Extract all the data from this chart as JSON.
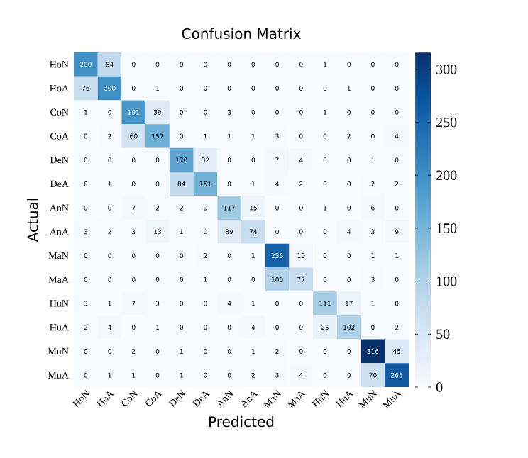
{
  "chart_data": {
    "type": "heatmap",
    "title": "Confusion Matrix",
    "xlabel": "Predicted",
    "ylabel": "Actual",
    "categories": [
      "HoN",
      "HoA",
      "CoN",
      "CoA",
      "DeN",
      "DeA",
      "AnN",
      "AnA",
      "MaN",
      "MaA",
      "HuN",
      "HuA",
      "MuN",
      "MuA"
    ],
    "y_categories": [
      "HoN",
      "HoA",
      "CoN",
      "CoA",
      "DeN",
      "DeA",
      "AnN",
      "AnA",
      "MaN",
      "MaA",
      "HuN",
      "HuA",
      "MuN",
      "MuA"
    ],
    "cells": [
      [
        200,
        84,
        0,
        0,
        0,
        0,
        0,
        0,
        0,
        0,
        1,
        0,
        0,
        0
      ],
      [
        76,
        200,
        0,
        1,
        0,
        0,
        0,
        0,
        0,
        0,
        0,
        1,
        0,
        0
      ],
      [
        1,
        0,
        191,
        39,
        0,
        0,
        3,
        0,
        0,
        0,
        1,
        0,
        0,
        0
      ],
      [
        0,
        2,
        60,
        157,
        0,
        1,
        1,
        1,
        3,
        0,
        0,
        2,
        0,
        4
      ],
      [
        0,
        0,
        0,
        0,
        170,
        32,
        0,
        0,
        7,
        4,
        0,
        0,
        1,
        0
      ],
      [
        0,
        1,
        0,
        0,
        84,
        151,
        0,
        1,
        4,
        2,
        0,
        0,
        2,
        2
      ],
      [
        0,
        0,
        7,
        2,
        2,
        0,
        117,
        15,
        0,
        0,
        1,
        0,
        6,
        0
      ],
      [
        3,
        2,
        3,
        13,
        1,
        0,
        39,
        74,
        0,
        0,
        0,
        4,
        3,
        9
      ],
      [
        0,
        0,
        0,
        0,
        0,
        2,
        0,
        1,
        256,
        10,
        0,
        0,
        1,
        1
      ],
      [
        0,
        0,
        0,
        0,
        0,
        1,
        0,
        0,
        100,
        77,
        0,
        0,
        3,
        0
      ],
      [
        3,
        1,
        7,
        3,
        0,
        0,
        4,
        1,
        0,
        0,
        111,
        17,
        1,
        0
      ],
      [
        2,
        4,
        0,
        1,
        0,
        0,
        0,
        4,
        0,
        0,
        25,
        102,
        0,
        2
      ],
      [
        0,
        0,
        2,
        0,
        1,
        0,
        0,
        1,
        2,
        0,
        0,
        0,
        316,
        45
      ],
      [
        0,
        1,
        1,
        0,
        1,
        0,
        0,
        2,
        3,
        4,
        0,
        0,
        70,
        265
      ]
    ],
    "clim": [
      0,
      316
    ],
    "cticks": [
      0,
      50,
      100,
      150,
      200,
      250,
      300
    ],
    "data_labels": true
  }
}
